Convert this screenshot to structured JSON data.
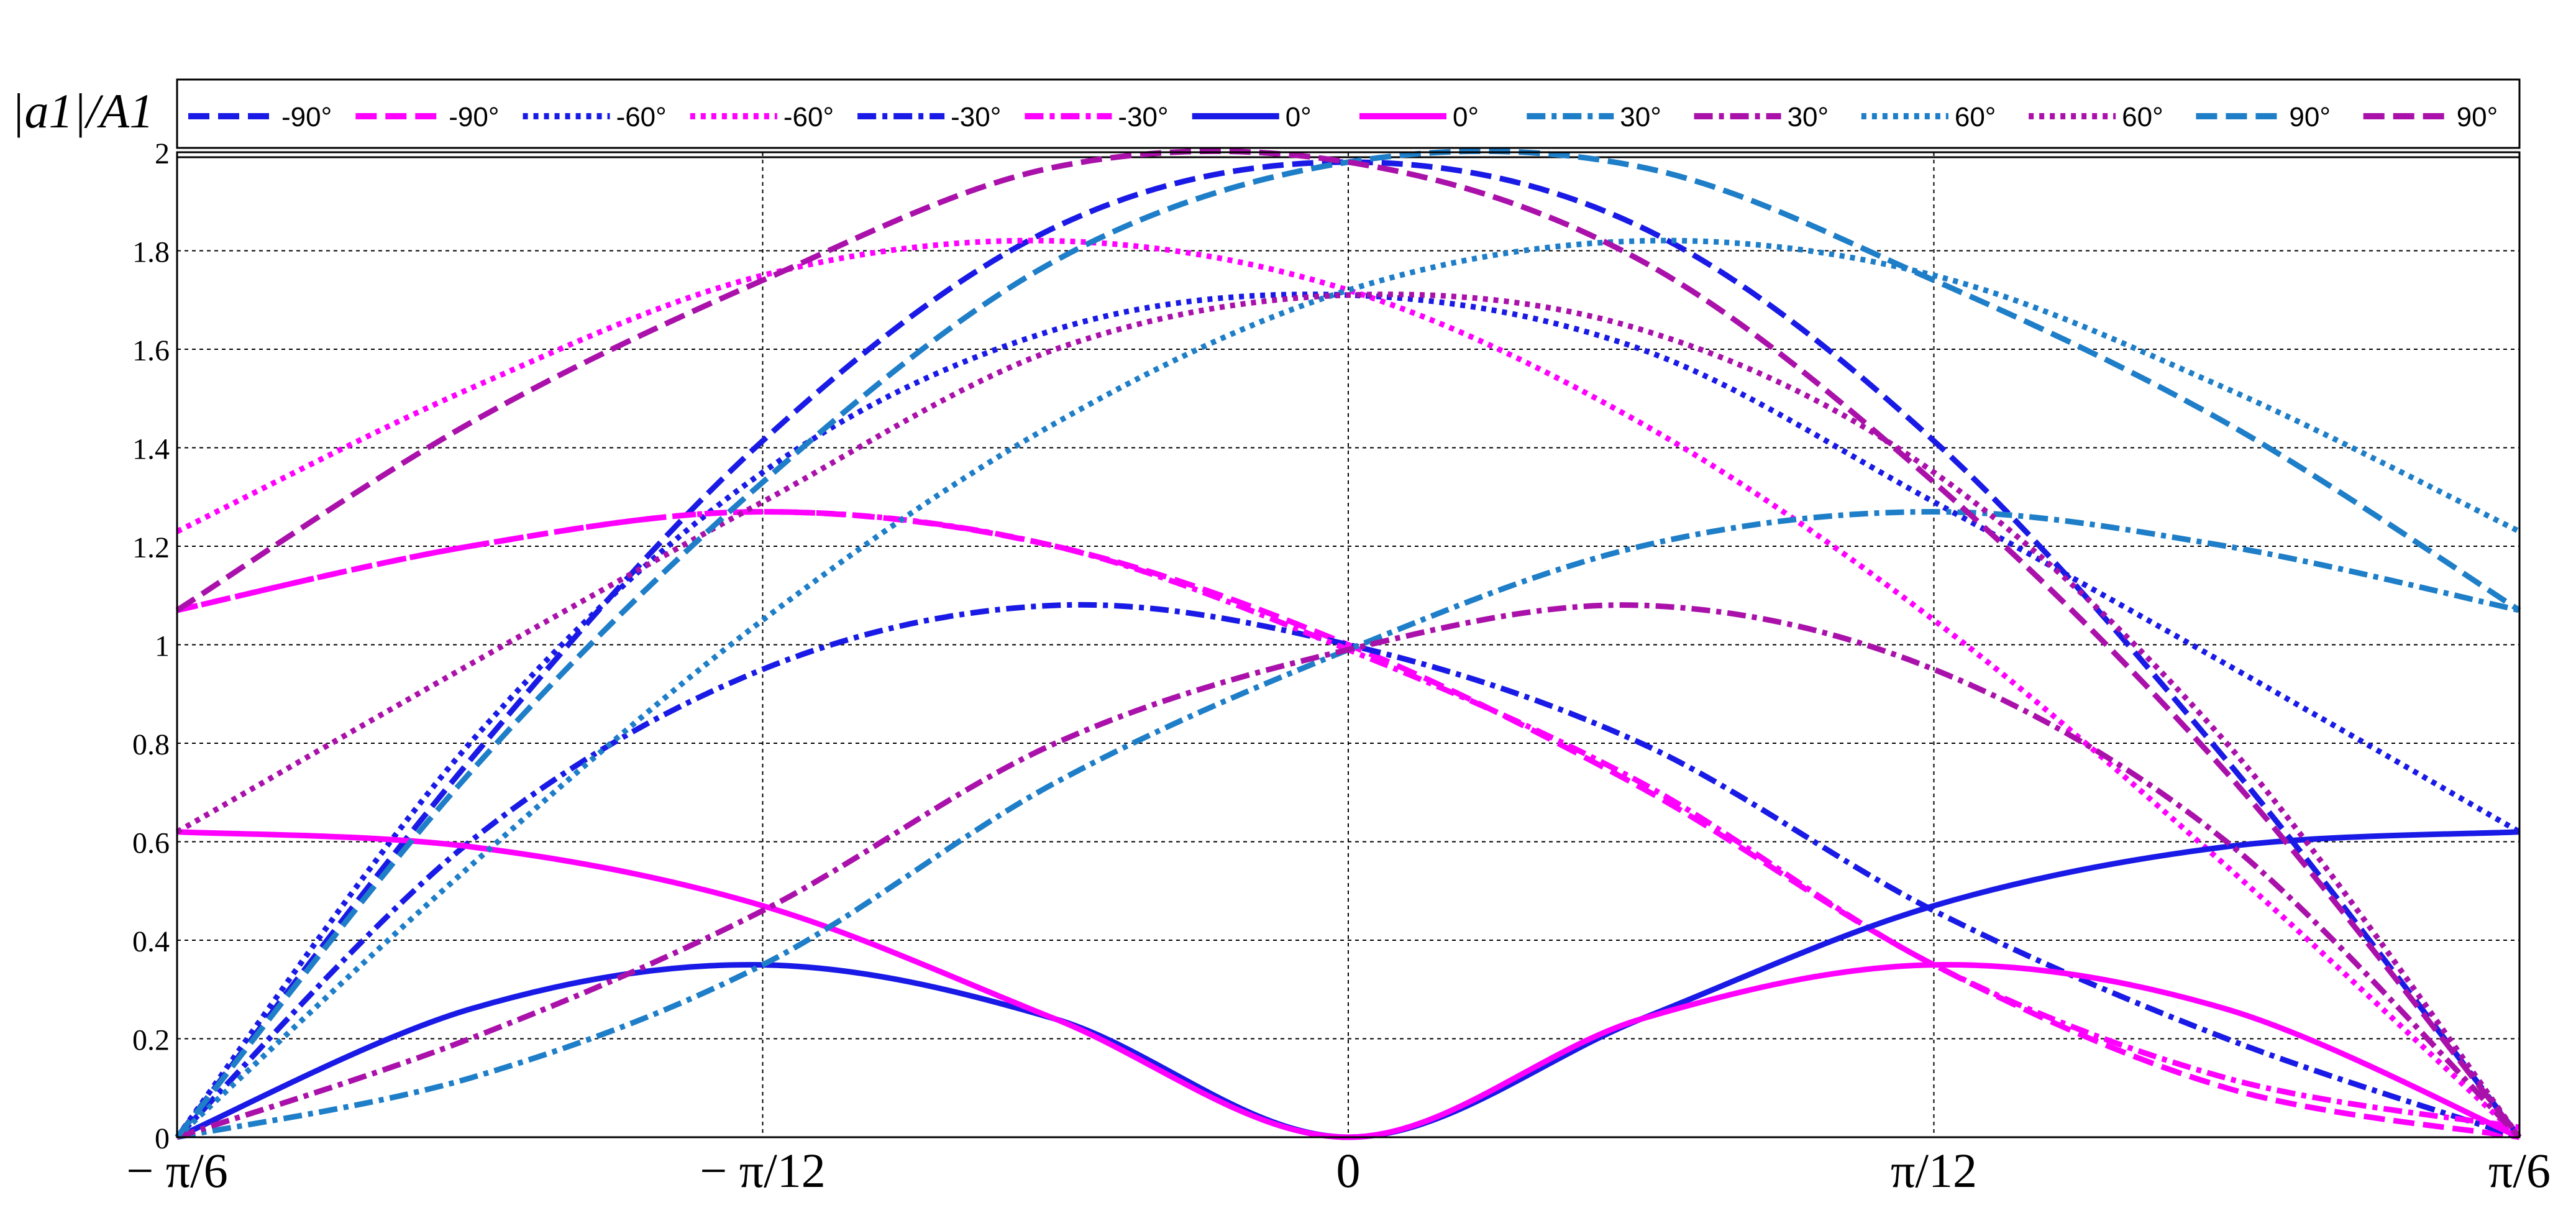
{
  "chart_data": {
    "type": "line",
    "ylabel": "|a1|/A1",
    "x_tick_labels": [
      "− π/6",
      "− π/12",
      "0",
      "π/12",
      "π/6"
    ],
    "x_tick_values": [
      -0.5236,
      -0.2618,
      0,
      0.2618,
      0.5236
    ],
    "xlim": [
      -0.5236,
      0.5236
    ],
    "y_tick_labels": [
      "0",
      "0.2",
      "0.4",
      "0.6",
      "0.8",
      "1",
      "1.2",
      "1.4",
      "1.6",
      "1.8",
      "2"
    ],
    "ylim": [
      0,
      2
    ],
    "grid": true,
    "legend_position": "top",
    "series": [
      {
        "name": "-90°",
        "color": "#1a1ae6",
        "dash": "dashed",
        "x": [
          -0.5236,
          -0.3927,
          -0.2618,
          -0.1309,
          0,
          0.1309,
          0.2618,
          0.3927,
          0.5236
        ],
        "y": [
          0,
          0.765,
          1.414,
          1.848,
          1.98,
          1.848,
          1.414,
          0.765,
          0
        ]
      },
      {
        "name": "-90°",
        "color": "#ff00ff",
        "dash": "dashed",
        "x": [
          -0.5236,
          -0.3927,
          -0.2618,
          -0.1309,
          0,
          0.1309,
          0.2618,
          0.3927,
          0.5236
        ],
        "y": [
          1.07,
          1.2,
          1.27,
          1.2,
          1.0,
          0.71,
          0.35,
          0.1,
          0.0
        ]
      },
      {
        "name": "-60°",
        "color": "#1a1ae6",
        "dash": "dotted",
        "x": [
          -0.5236,
          -0.3927,
          -0.2618,
          -0.1309,
          0,
          0.1309,
          0.2618,
          0.3927,
          0.5236
        ],
        "y": [
          0,
          0.8,
          1.35,
          1.64,
          1.71,
          1.6,
          1.29,
          0.96,
          0.62
        ]
      },
      {
        "name": "-60°",
        "color": "#ff00ff",
        "dash": "dotted",
        "x": [
          -0.5236,
          -0.3927,
          -0.2618,
          -0.1309,
          0,
          0.1309,
          0.2618,
          0.3927,
          0.5236
        ],
        "y": [
          1.23,
          1.52,
          1.75,
          1.82,
          1.72,
          1.45,
          1.05,
          0.55,
          0
        ]
      },
      {
        "name": "-30°",
        "color": "#1a1ae6",
        "dash": "dashdot",
        "x": [
          -0.5236,
          -0.3927,
          -0.2618,
          -0.1309,
          0,
          0.1309,
          0.2618,
          0.3927,
          0.5236
        ],
        "y": [
          0,
          0.6,
          0.95,
          1.08,
          1.0,
          0.8,
          0.46,
          0.2,
          0
        ]
      },
      {
        "name": "-30°",
        "color": "#ff00ff",
        "dash": "dashdot",
        "x": [
          -0.5236,
          -0.3927,
          -0.2618,
          -0.1309,
          0,
          0.1309,
          0.2618,
          0.3927,
          0.5236
        ],
        "y": [
          1.07,
          1.2,
          1.27,
          1.2,
          0.99,
          0.72,
          0.35,
          0.12,
          0.02
        ]
      },
      {
        "name": "0°",
        "color": "#1a1ae6",
        "dash": "solid",
        "x": [
          -0.5236,
          -0.3927,
          -0.2618,
          -0.1309,
          0,
          0.1309,
          0.2618,
          0.3927,
          0.5236
        ],
        "y": [
          0,
          0.26,
          0.35,
          0.24,
          0,
          0.24,
          0.47,
          0.59,
          0.62
        ]
      },
      {
        "name": "0°",
        "color": "#ff00ff",
        "dash": "solid",
        "x": [
          -0.5236,
          -0.3927,
          -0.2618,
          -0.1309,
          0,
          0.1309,
          0.2618,
          0.3927,
          0.5236
        ],
        "y": [
          0.62,
          0.59,
          0.47,
          0.24,
          0,
          0.24,
          0.35,
          0.26,
          0
        ]
      },
      {
        "name": "30°",
        "color": "#1e7ec8",
        "dash": "dashdot",
        "x": [
          -0.5236,
          -0.3927,
          -0.2618,
          -0.1309,
          0,
          0.1309,
          0.2618,
          0.3927,
          0.5236
        ],
        "y": [
          0,
          0.12,
          0.35,
          0.72,
          0.99,
          1.2,
          1.27,
          1.2,
          1.07
        ]
      },
      {
        "name": "30°",
        "color": "#aa11aa",
        "dash": "dashdot",
        "x": [
          -0.5236,
          -0.3927,
          -0.2618,
          -0.1309,
          0,
          0.1309,
          0.2618,
          0.3927,
          0.5236
        ],
        "y": [
          0,
          0.2,
          0.46,
          0.8,
          0.99,
          1.08,
          0.95,
          0.6,
          0
        ]
      },
      {
        "name": "60°",
        "color": "#1e7ec8",
        "dash": "dotted",
        "x": [
          -0.5236,
          -0.3927,
          -0.2618,
          -0.1309,
          0,
          0.1309,
          0.2618,
          0.3927,
          0.5236
        ],
        "y": [
          0,
          0.55,
          1.05,
          1.45,
          1.72,
          1.82,
          1.75,
          1.52,
          1.23
        ]
      },
      {
        "name": "60°",
        "color": "#aa11aa",
        "dash": "dotted",
        "x": [
          -0.5236,
          -0.3927,
          -0.2618,
          -0.1309,
          0,
          0.1309,
          0.2618,
          0.3927,
          0.5236
        ],
        "y": [
          0.62,
          0.96,
          1.29,
          1.6,
          1.71,
          1.64,
          1.35,
          0.8,
          0
        ]
      },
      {
        "name": "90°",
        "color": "#1e7ec8",
        "dash": "dashed",
        "x": [
          -0.5236,
          -0.3927,
          -0.2618,
          -0.1309,
          0,
          0.1309,
          0.2618,
          0.3927,
          0.5236
        ],
        "y": [
          0,
          0.74,
          1.33,
          1.78,
          1.98,
          1.97,
          1.74,
          1.45,
          1.07
        ]
      },
      {
        "name": "90°",
        "color": "#aa11aa",
        "dash": "dashed",
        "x": [
          -0.5236,
          -0.3927,
          -0.2618,
          -0.1309,
          0,
          0.1309,
          0.2618,
          0.3927,
          0.5236
        ],
        "y": [
          1.07,
          1.45,
          1.74,
          1.97,
          1.98,
          1.78,
          1.33,
          0.74,
          0
        ]
      }
    ]
  }
}
